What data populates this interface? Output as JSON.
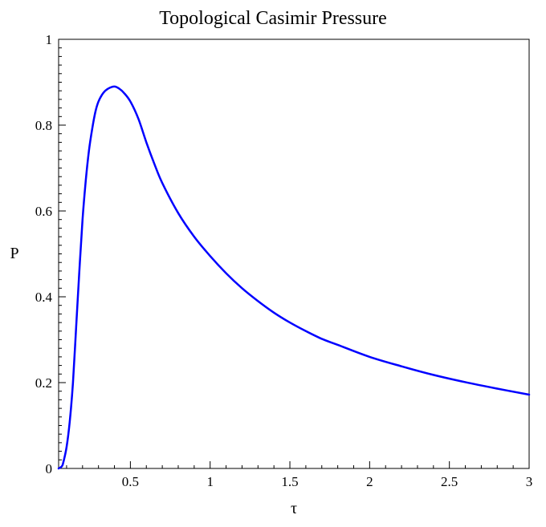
{
  "chart_data": {
    "type": "line",
    "title": "Topological Casimir Pressure",
    "xlabel": "τ",
    "ylabel": "P",
    "xlim": [
      0.05,
      3.0
    ],
    "ylim": [
      0,
      1
    ],
    "x_ticks": [
      0.5,
      1,
      1.5,
      2,
      2.5,
      3
    ],
    "x_tick_labels": [
      "0.5",
      "1",
      "1.5",
      "2",
      "2.5",
      "3"
    ],
    "y_ticks": [
      0,
      0.2,
      0.4,
      0.6,
      0.8,
      1
    ],
    "y_tick_labels": [
      "0",
      "0.2",
      "0.4",
      "0.6",
      "0.8",
      "1"
    ],
    "grid": false,
    "line_color": "#0000ff",
    "series": [
      {
        "x": [
          0.05,
          0.07,
          0.08,
          0.1,
          0.12,
          0.14,
          0.16,
          0.18,
          0.2,
          0.22,
          0.24,
          0.26,
          0.28,
          0.3,
          0.33,
          0.36,
          0.4,
          0.43,
          0.46,
          0.5,
          0.55,
          0.6,
          0.65,
          0.7,
          0.8,
          0.9,
          1.0,
          1.1,
          1.2,
          1.3,
          1.4,
          1.5,
          1.6,
          1.7,
          1.8,
          2.0,
          2.2,
          2.4,
          2.6,
          2.8,
          3.0
        ],
        "values": [
          0.0,
          0.005,
          0.015,
          0.05,
          0.11,
          0.2,
          0.33,
          0.46,
          0.58,
          0.67,
          0.74,
          0.79,
          0.83,
          0.855,
          0.875,
          0.885,
          0.89,
          0.885,
          0.875,
          0.855,
          0.815,
          0.76,
          0.71,
          0.665,
          0.595,
          0.54,
          0.495,
          0.455,
          0.42,
          0.39,
          0.363,
          0.34,
          0.32,
          0.302,
          0.288,
          0.26,
          0.238,
          0.218,
          0.201,
          0.186,
          0.172
        ]
      }
    ]
  }
}
